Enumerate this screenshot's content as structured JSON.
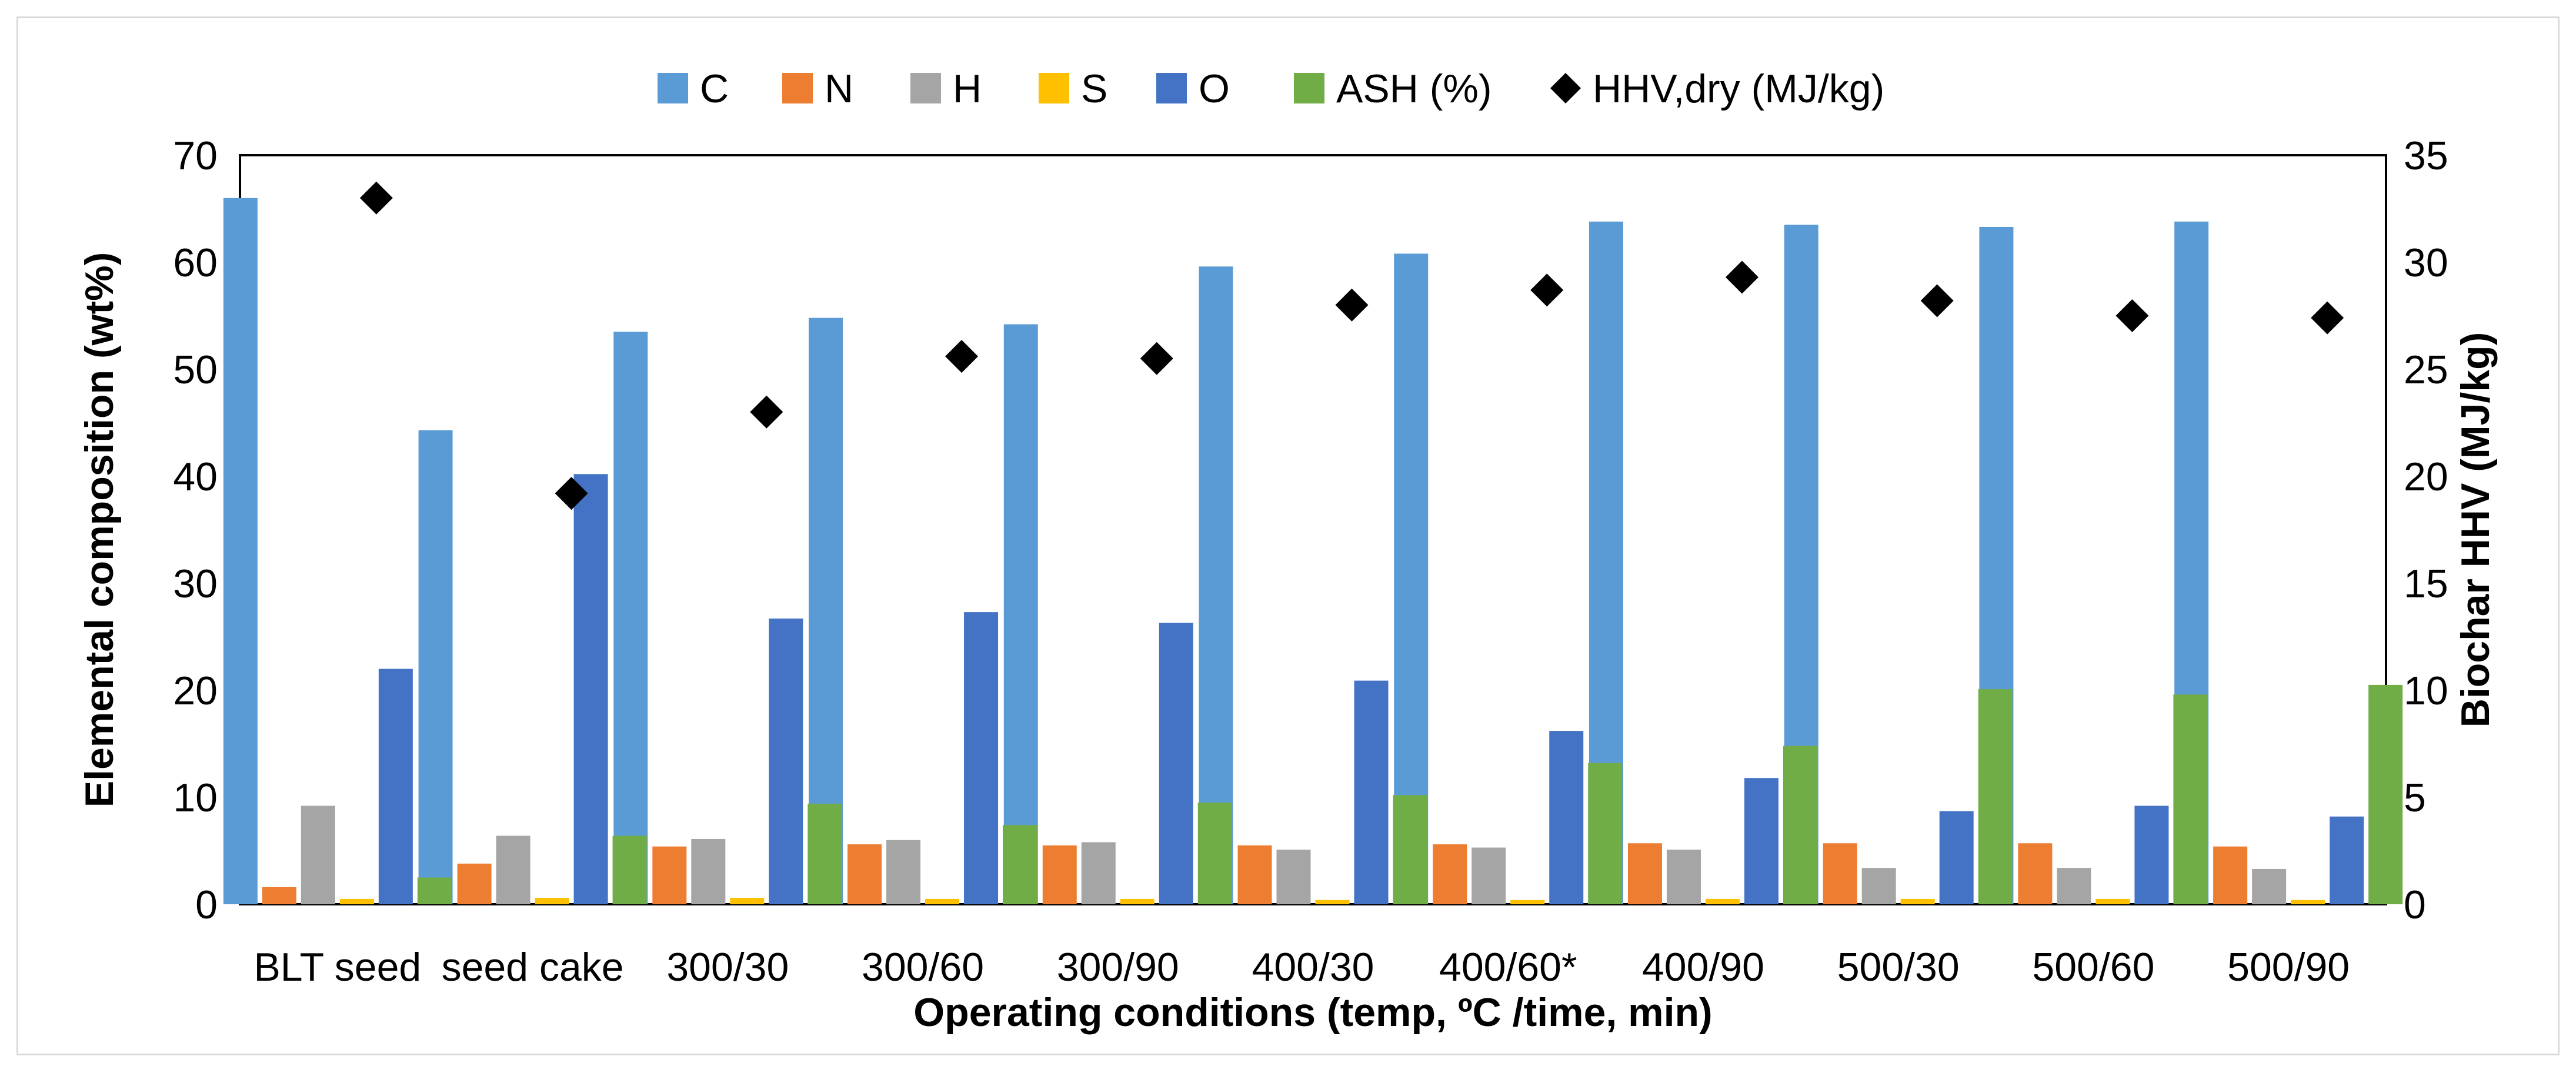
{
  "chart_data": {
    "type": "bar",
    "title": "",
    "xlabel": "Operating conditions (temp, ºC /time, min)",
    "ylabel": "Elemental composition (wt%)",
    "y2label": "Biochar HHV (MJ/kg)",
    "ylim": [
      0,
      70
    ],
    "y2lim": [
      0,
      35
    ],
    "yticks": [
      "0",
      "10",
      "20",
      "30",
      "40",
      "50",
      "60",
      "70"
    ],
    "y2ticks": [
      "0",
      "5",
      "10",
      "15",
      "20",
      "25",
      "30",
      "35"
    ],
    "legend_position": "top",
    "categories": [
      "BLT seed",
      "seed cake",
      "300/30",
      "300/60",
      "300/90",
      "400/30",
      "400/60*",
      "400/90",
      "500/30",
      "500/60",
      "500/90"
    ],
    "series": [
      {
        "name": "C",
        "color": "#5B9BD5",
        "values": [
          66.0,
          44.3,
          53.5,
          54.8,
          54.2,
          59.6,
          60.8,
          63.8,
          63.5,
          63.3,
          63.8
        ]
      },
      {
        "name": "N",
        "color": "#ED7D31",
        "values": [
          1.6,
          3.8,
          5.4,
          5.6,
          5.5,
          5.5,
          5.6,
          5.7,
          5.7,
          5.7,
          5.4
        ]
      },
      {
        "name": "H",
        "color": "#A5A5A5",
        "values": [
          9.2,
          6.4,
          6.1,
          6.0,
          5.8,
          5.1,
          5.3,
          5.1,
          3.4,
          3.4,
          3.3
        ]
      },
      {
        "name": "S",
        "color": "#FFC000",
        "values": [
          0.5,
          0.6,
          0.6,
          0.5,
          0.5,
          0.4,
          0.4,
          0.5,
          0.5,
          0.5,
          0.4
        ]
      },
      {
        "name": "O",
        "color": "#4472C4",
        "values": [
          22.0,
          40.2,
          26.7,
          27.3,
          26.3,
          20.9,
          16.2,
          11.8,
          8.7,
          9.2,
          8.2
        ]
      },
      {
        "name": "ASH (%)",
        "color": "#70AD47",
        "values": [
          2.5,
          6.4,
          9.4,
          7.4,
          9.5,
          10.2,
          13.2,
          14.8,
          20.1,
          19.6,
          20.5
        ]
      }
    ],
    "line_series": {
      "name": "HHV,dry (MJ/kg)",
      "axis": "secondary",
      "marker": "diamond",
      "color": "#000000",
      "values": [
        33.0,
        19.2,
        23.0,
        25.6,
        25.5,
        28.0,
        28.7,
        29.3,
        28.2,
        27.5,
        27.4
      ]
    }
  }
}
